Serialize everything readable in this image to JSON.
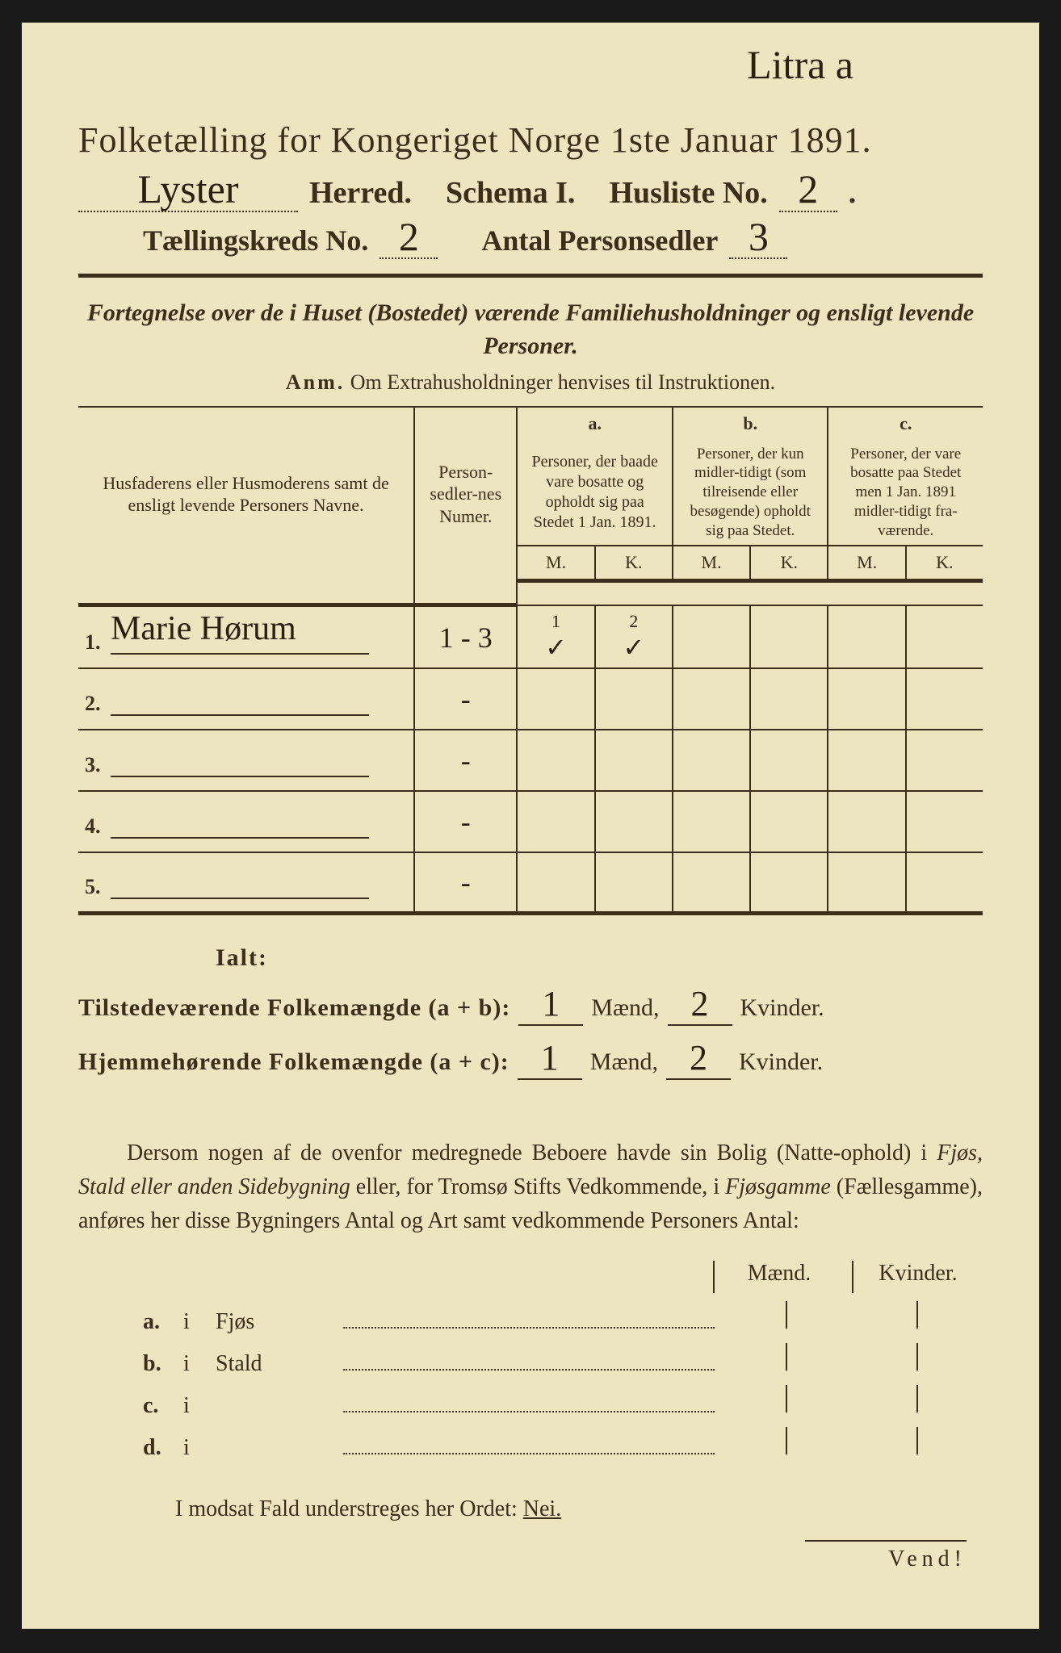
{
  "litra": "Litra a",
  "title": "Folketælling for Kongeriget Norge 1ste Januar 1891.",
  "line2": {
    "herred_value": "Lyster",
    "herred_label": "Herred.",
    "schema_label": "Schema I.",
    "husliste_label": "Husliste No.",
    "husliste_value": "2"
  },
  "line3": {
    "kreds_label": "Tællingskreds No.",
    "kreds_value": "2",
    "antal_label": "Antal Personsedler",
    "antal_value": "3"
  },
  "fortegnelse": "Fortegnelse over de i Huset (Bostedet) værende Familiehusholdninger og ensligt levende Personer.",
  "anm_prefix": "Anm.",
  "anm_text": "Om Extrahusholdninger henvises til Instruktionen.",
  "thead": {
    "name": "Husfaderens eller Husmoderens samt de ensligt levende Personers Navne.",
    "numer": "Person-sedler-nes Numer.",
    "a_hdr": "a.",
    "a_txt": "Personer, der baade vare bosatte og opholdt sig paa Stedet 1 Jan. 1891.",
    "b_hdr": "b.",
    "b_txt": "Personer, der kun midler-tidigt (som tilreisende eller besøgende) opholdt sig paa Stedet.",
    "c_hdr": "c.",
    "c_txt": "Personer, der vare bosatte paa Stedet men 1 Jan. 1891 midler-tidigt fra-værende.",
    "m": "M.",
    "k": "K."
  },
  "rows": [
    {
      "num": "1.",
      "name": "Marie Hørum",
      "numer": "1 - 3",
      "aM": "1",
      "aK": "2",
      "tickM": "✓",
      "tickK": "✓"
    },
    {
      "num": "2.",
      "name": "",
      "numer": "-",
      "aM": "",
      "aK": ""
    },
    {
      "num": "3.",
      "name": "",
      "numer": "-",
      "aM": "",
      "aK": ""
    },
    {
      "num": "4.",
      "name": "",
      "numer": "-",
      "aM": "",
      "aK": ""
    },
    {
      "num": "5.",
      "name": "",
      "numer": "-",
      "aM": "",
      "aK": ""
    }
  ],
  "ialt": {
    "title": "Ialt:",
    "line1_label": "Tilstedeværende Folkemængde (a + b):",
    "line2_label": "Hjemmehørende Folkemængde (a + c):",
    "maend": "Mænd,",
    "kvinder": "Kvinder.",
    "v1m": "1",
    "v1k": "2",
    "v2m": "1",
    "v2k": "2"
  },
  "para_parts": {
    "p1": "Dersom nogen af de ovenfor medregnede Beboere havde sin Bolig (Natte-ophold) i ",
    "i1": "Fjøs, Stald eller anden Sidebygning",
    "p2": " eller, for Tromsø Stifts Vedkommende, i ",
    "i2": "Fjøsgamme",
    "p3": " (Fællesgamme), anføres her disse Bygningers Antal og Art samt vedkommende Personers Antal:"
  },
  "mk": {
    "m": "Mænd.",
    "k": "Kvinder."
  },
  "list": [
    {
      "lbl": "a.",
      "i": "i",
      "txt": "Fjøs"
    },
    {
      "lbl": "b.",
      "i": "i",
      "txt": "Stald"
    },
    {
      "lbl": "c.",
      "i": "i",
      "txt": ""
    },
    {
      "lbl": "d.",
      "i": "i",
      "txt": ""
    }
  ],
  "modsat_pre": "I modsat Fald understreges her Ordet: ",
  "nei": "Nei.",
  "vend": "Vend!"
}
